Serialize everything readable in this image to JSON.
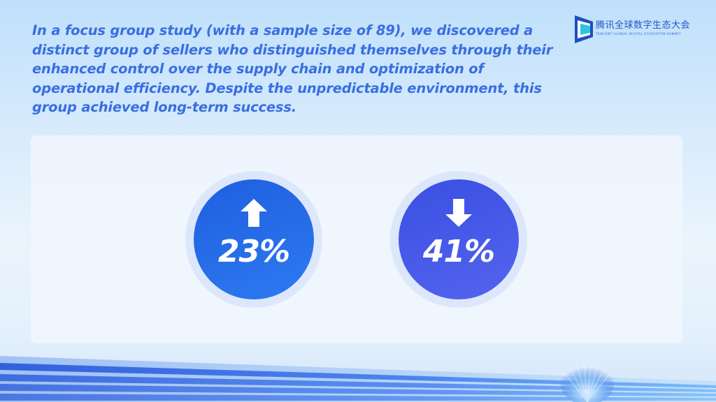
{
  "headline": "In a focus group study (with a sample size of 89), we discovered a distinct group of sellers who distinguished themselves through their enhanced control over the supply chain and optimization of operational efficiency. Despite the unpredictable environment, this group achieved long-term success.",
  "logo": {
    "name_cn": "腾讯全球数字生态大会",
    "name_en": "TENCENT GLOBAL DIGITAL ECOSYSTEM SUMMIT"
  },
  "stats": [
    {
      "value": "23%",
      "direction": "up",
      "icon": "arrow-up-icon"
    },
    {
      "value": "41%",
      "direction": "down",
      "icon": "arrow-down-icon"
    }
  ],
  "colors": {
    "headline": "#3a6ee2",
    "stat_up": "#1f5fe0",
    "stat_down": "#3a4fe2",
    "brand": "#2555c9"
  }
}
